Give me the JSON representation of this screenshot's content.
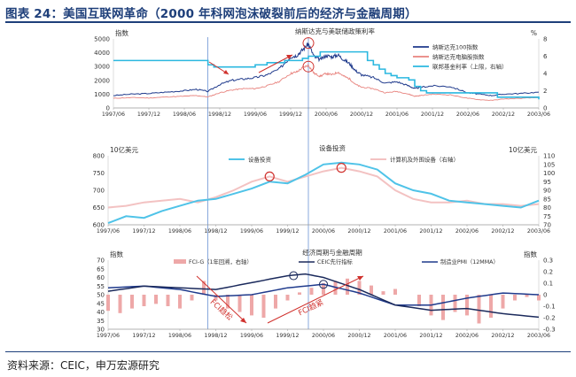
{
  "page": {
    "title": "图表 24：美国互联网革命（2000 年科网泡沫破裂前后的经济与金融周期）",
    "source": "资料来源：CEIC，申万宏源研究"
  },
  "colors": {
    "title_blue": "#1e3f7a",
    "navy": "#1f3a8c",
    "deep_navy": "#1b2a5c",
    "salmon": "#e8837e",
    "pink": "#f3c2c2",
    "bar_pink": "#eea8a8",
    "light_blue": "#4fc3e8",
    "cyan": "#2bb8e0",
    "red": "#d0312d",
    "bg": "#ffffff"
  },
  "x_tick_labels": [
    "1997/06",
    "1997/12",
    "1998/06",
    "1998/12",
    "1999/06",
    "1999/12",
    "2000/06",
    "2000/12",
    "2001/06",
    "2001/12",
    "2002/06",
    "2002/12",
    "2003/06"
  ],
  "chart_data": [
    {
      "id": "panel1",
      "type": "line",
      "title": "纳斯达克与美联储政策利率",
      "ylabel": "指数",
      "y2label": "%",
      "ylim": [
        0,
        5000
      ],
      "y2lim": [
        0,
        8
      ],
      "yticks": [
        0,
        1000,
        2000,
        3000,
        4000,
        5000
      ],
      "y2ticks": [
        0,
        2,
        4,
        6,
        8
      ],
      "x_range": [
        "1997/06",
        "2003/06"
      ],
      "markers": [
        {
          "x": "1998/10",
          "shape": "vertical-line"
        },
        {
          "x": "2000/03",
          "shape": "vertical-line"
        }
      ],
      "series": [
        {
          "name": "纳斯达克100指数",
          "axis": "left",
          "x": [
            "1997/06",
            "1997/09",
            "1997/12",
            "1998/03",
            "1998/06",
            "1998/08",
            "1998/10",
            "1998/12",
            "1999/02",
            "1999/04",
            "1999/06",
            "1999/08",
            "1999/10",
            "1999/12",
            "2000/01",
            "2000/02",
            "2000/03",
            "2000/04",
            "2000/05",
            "2000/06",
            "2000/07",
            "2000/08",
            "2000/09",
            "2000/10",
            "2000/11",
            "2000/12",
            "2001/02",
            "2001/04",
            "2001/06",
            "2001/08",
            "2001/09",
            "2001/10",
            "2001/12",
            "2002/03",
            "2002/06",
            "2002/08",
            "2002/10",
            "2002/12",
            "2003/03",
            "2003/06"
          ],
          "values": [
            900,
            1000,
            1050,
            1150,
            1250,
            1350,
            1200,
            1700,
            2000,
            2100,
            2200,
            2400,
            2800,
            3700,
            3800,
            4200,
            4650,
            3700,
            3500,
            3800,
            3700,
            3850,
            3500,
            3200,
            2700,
            2400,
            2200,
            1800,
            1900,
            1600,
            1400,
            1500,
            1600,
            1550,
            1100,
            1000,
            900,
            1000,
            1050,
            1150
          ]
        },
        {
          "name": "纳斯达克电脑股指数",
          "axis": "left",
          "x": [
            "1997/06",
            "1997/09",
            "1997/12",
            "1998/03",
            "1998/06",
            "1998/08",
            "1998/10",
            "1998/12",
            "1999/02",
            "1999/04",
            "1999/06",
            "1999/08",
            "1999/10",
            "1999/12",
            "2000/01",
            "2000/02",
            "2000/03",
            "2000/04",
            "2000/05",
            "2000/06",
            "2000/07",
            "2000/08",
            "2000/09",
            "2000/10",
            "2000/11",
            "2000/12",
            "2001/02",
            "2001/04",
            "2001/06",
            "2001/08",
            "2001/09",
            "2001/10",
            "2001/12",
            "2002/03",
            "2002/06",
            "2002/08",
            "2002/10",
            "2002/12",
            "2003/03",
            "2003/06"
          ],
          "values": [
            700,
            750,
            720,
            800,
            850,
            900,
            800,
            1100,
            1300,
            1400,
            1400,
            1600,
            1900,
            2500,
            2600,
            2900,
            3100,
            2500,
            2300,
            2500,
            2400,
            2600,
            2300,
            2100,
            1700,
            1500,
            1400,
            1100,
            1200,
            1000,
            850,
            900,
            1000,
            950,
            700,
            600,
            550,
            650,
            700,
            750
          ]
        },
        {
          "name": "联邦基金利率（上限，右轴）",
          "axis": "right",
          "x": [
            "1997/06",
            "1998/09",
            "1998/10",
            "1998/11",
            "1999/06",
            "1999/08",
            "1999/11",
            "2000/02",
            "2000/03",
            "2000/05",
            "2001/01",
            "2001/02",
            "2001/03",
            "2001/04",
            "2001/05",
            "2001/06",
            "2001/08",
            "2001/09",
            "2001/10",
            "2001/11",
            "2001/12",
            "2002/11",
            "2003/06"
          ],
          "values": [
            5.5,
            5.5,
            5.0,
            4.75,
            5.0,
            5.25,
            5.5,
            5.75,
            6.0,
            6.5,
            5.5,
            5.0,
            4.5,
            4.0,
            3.75,
            3.5,
            3.25,
            2.5,
            2.0,
            1.75,
            1.75,
            1.25,
            1.0
          ]
        }
      ],
      "annotations": [
        {
          "text": "",
          "type": "red-circle",
          "x": "2000/03",
          "y": 4700
        },
        {
          "text": "",
          "type": "red-circle",
          "x": "2000/03",
          "y": 3000
        }
      ]
    },
    {
      "id": "panel2",
      "type": "line",
      "title": "设备投资",
      "ylabel": "10亿美元",
      "y2label": "10亿美元",
      "ylim": [
        600,
        800
      ],
      "y2lim": [
        70,
        110
      ],
      "yticks": [
        600,
        650,
        700,
        750,
        800
      ],
      "y2ticks": [
        70,
        75,
        80,
        85,
        90,
        95,
        100,
        105,
        110
      ],
      "series": [
        {
          "name": "设备投资",
          "axis": "left",
          "x": [
            "1997/06",
            "1997/09",
            "1997/12",
            "1998/03",
            "1998/06",
            "1998/09",
            "1998/12",
            "1999/03",
            "1999/06",
            "1999/09",
            "1999/12",
            "2000/03",
            "2000/06",
            "2000/09",
            "2000/12",
            "2001/03",
            "2001/06",
            "2001/09",
            "2001/12",
            "2002/03",
            "2002/06",
            "2002/09",
            "2002/12",
            "2003/03",
            "2003/06"
          ],
          "values": [
            605,
            625,
            620,
            640,
            655,
            670,
            675,
            690,
            705,
            725,
            720,
            745,
            775,
            780,
            775,
            760,
            720,
            700,
            690,
            670,
            665,
            660,
            655,
            650,
            670
          ]
        },
        {
          "name": "计算机及外围设备（右轴）",
          "axis": "right",
          "x": [
            "1997/06",
            "1997/09",
            "1997/12",
            "1998/03",
            "1998/06",
            "1998/09",
            "1998/12",
            "1999/03",
            "1999/06",
            "1999/09",
            "1999/12",
            "2000/03",
            "2000/06",
            "2000/09",
            "2000/12",
            "2001/03",
            "2001/06",
            "2001/09",
            "2001/12",
            "2002/03",
            "2002/06",
            "2002/09",
            "2002/12",
            "2003/03",
            "2003/06"
          ],
          "values": [
            80,
            81,
            83,
            84,
            85,
            83,
            86,
            90,
            95,
            98,
            95,
            98,
            101,
            103,
            101,
            98,
            90,
            85,
            83,
            83,
            84,
            82,
            82,
            81,
            82
          ]
        }
      ],
      "annotations": [
        {
          "text": "",
          "type": "red-circle",
          "x": "1999/09",
          "y": 98
        },
        {
          "text": "",
          "type": "red-circle",
          "x": "2000/09",
          "y": 103
        }
      ]
    },
    {
      "id": "panel3",
      "type": "bar",
      "title": "经济周期与金融周期",
      "ylabel": "指数",
      "y2label": "指数",
      "ylim": [
        30,
        70
      ],
      "y2lim": [
        -0.3,
        0.3
      ],
      "yticks": [
        30,
        35,
        40,
        45,
        50,
        55,
        60,
        65,
        70
      ],
      "y2ticks": [
        -0.3,
        -0.2,
        -0.1,
        0.0,
        0.1,
        0.2,
        0.3
      ],
      "bar_series": {
        "name": "FCI-G（1年回溯，右轴）",
        "axis": "right",
        "x": [
          "1997/06",
          "1997/08",
          "1997/10",
          "1997/12",
          "1998/02",
          "1998/04",
          "1998/06",
          "1998/08",
          "1998/10",
          "1998/12",
          "1999/02",
          "1999/04",
          "1999/06",
          "1999/08",
          "1999/10",
          "1999/12",
          "2000/02",
          "2000/04",
          "2000/06",
          "2000/08",
          "2000/10",
          "2000/12",
          "2001/02",
          "2001/04",
          "2001/06",
          "2001/08",
          "2001/10",
          "2001/12",
          "2002/02",
          "2002/04",
          "2002/06",
          "2002/08",
          "2002/10",
          "2002/12",
          "2003/02",
          "2003/04",
          "2003/06"
        ],
        "values": [
          -0.14,
          -0.16,
          -0.12,
          -0.1,
          -0.08,
          -0.1,
          -0.12,
          -0.05,
          0.12,
          -0.05,
          -0.12,
          -0.15,
          -0.18,
          -0.2,
          -0.12,
          -0.05,
          0.02,
          0.06,
          0.1,
          0.12,
          0.14,
          0.12,
          0.08,
          0.03,
          0.05,
          0.0,
          -0.1,
          -0.18,
          -0.22,
          -0.15,
          -0.18,
          -0.25,
          -0.2,
          -0.12,
          -0.05,
          -0.02,
          -0.05
        ]
      },
      "series": [
        {
          "name": "CEIC先行指标",
          "axis": "left",
          "x": [
            "1997/06",
            "1997/12",
            "1998/06",
            "1998/12",
            "1999/06",
            "1999/12",
            "2000/03",
            "2000/06",
            "2000/12",
            "2001/06",
            "2001/12",
            "2002/06",
            "2002/12",
            "2003/06"
          ],
          "values": [
            52,
            55,
            54,
            53,
            57,
            61,
            62,
            60,
            53,
            44,
            41,
            42,
            39,
            37
          ]
        },
        {
          "name": "制造业PMI（12MMA）",
          "axis": "left",
          "x": [
            "1997/06",
            "1997/12",
            "1998/06",
            "1998/12",
            "1999/06",
            "1999/12",
            "2000/06",
            "2000/12",
            "2001/06",
            "2001/12",
            "2002/06",
            "2002/12",
            "2003/06"
          ],
          "values": [
            54,
            55,
            53,
            49,
            50,
            54,
            56,
            51,
            44,
            44,
            48,
            51,
            50
          ]
        }
      ],
      "annotations": [
        {
          "text": "FCI趋松",
          "type": "label"
        },
        {
          "text": "FCI趋紧",
          "type": "label"
        },
        {
          "text": "",
          "type": "blue-circle",
          "x": "2000/01",
          "y": 61
        },
        {
          "text": "",
          "type": "blue-circle",
          "x": "2000/06",
          "y": 56
        }
      ]
    }
  ]
}
